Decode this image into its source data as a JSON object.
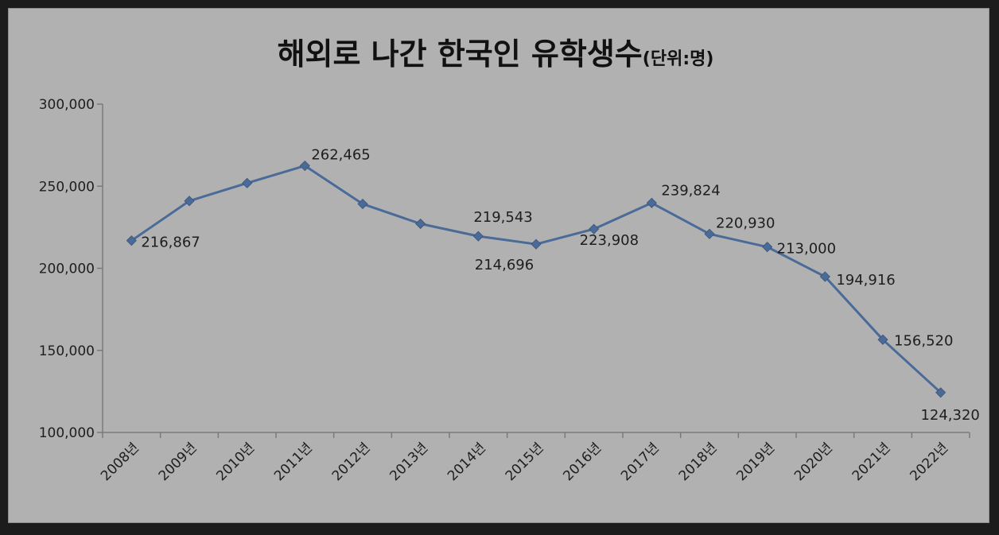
{
  "chart_data": {
    "type": "line",
    "title": "해외로 나간 한국인 유학생수",
    "subtitle": "(단위:명)",
    "categories": [
      "2008년",
      "2009년",
      "2010년",
      "2011년",
      "2012년",
      "2013년",
      "2014년",
      "2015년",
      "2016년",
      "2017년",
      "2018년",
      "2019년",
      "2020년",
      "2021년",
      "2022년"
    ],
    "series": [
      {
        "values": [
          216867,
          241000,
          251900,
          262465,
          239200,
          227100,
          219543,
          214696,
          223908,
          239824,
          220930,
          213000,
          194916,
          156520,
          124320
        ]
      }
    ],
    "data_labels": [
      {
        "index": 0,
        "text": "216,867"
      },
      {
        "index": 3,
        "text": "262,465"
      },
      {
        "index": 6,
        "text": "219,543"
      },
      {
        "index": 7,
        "text": "214,696"
      },
      {
        "index": 8,
        "text": "223,908"
      },
      {
        "index": 9,
        "text": "239,824"
      },
      {
        "index": 10,
        "text": "220,930"
      },
      {
        "index": 11,
        "text": "213,000"
      },
      {
        "index": 12,
        "text": "194,916"
      },
      {
        "index": 13,
        "text": "156,520"
      },
      {
        "index": 14,
        "text": "124,320"
      }
    ],
    "yticks": [
      "100,000",
      "150,000",
      "200,000",
      "250,000",
      "300,000"
    ],
    "ylim": [
      100000,
      300000
    ],
    "grid": false,
    "legend": "none",
    "line_color": "#4a6b98"
  }
}
